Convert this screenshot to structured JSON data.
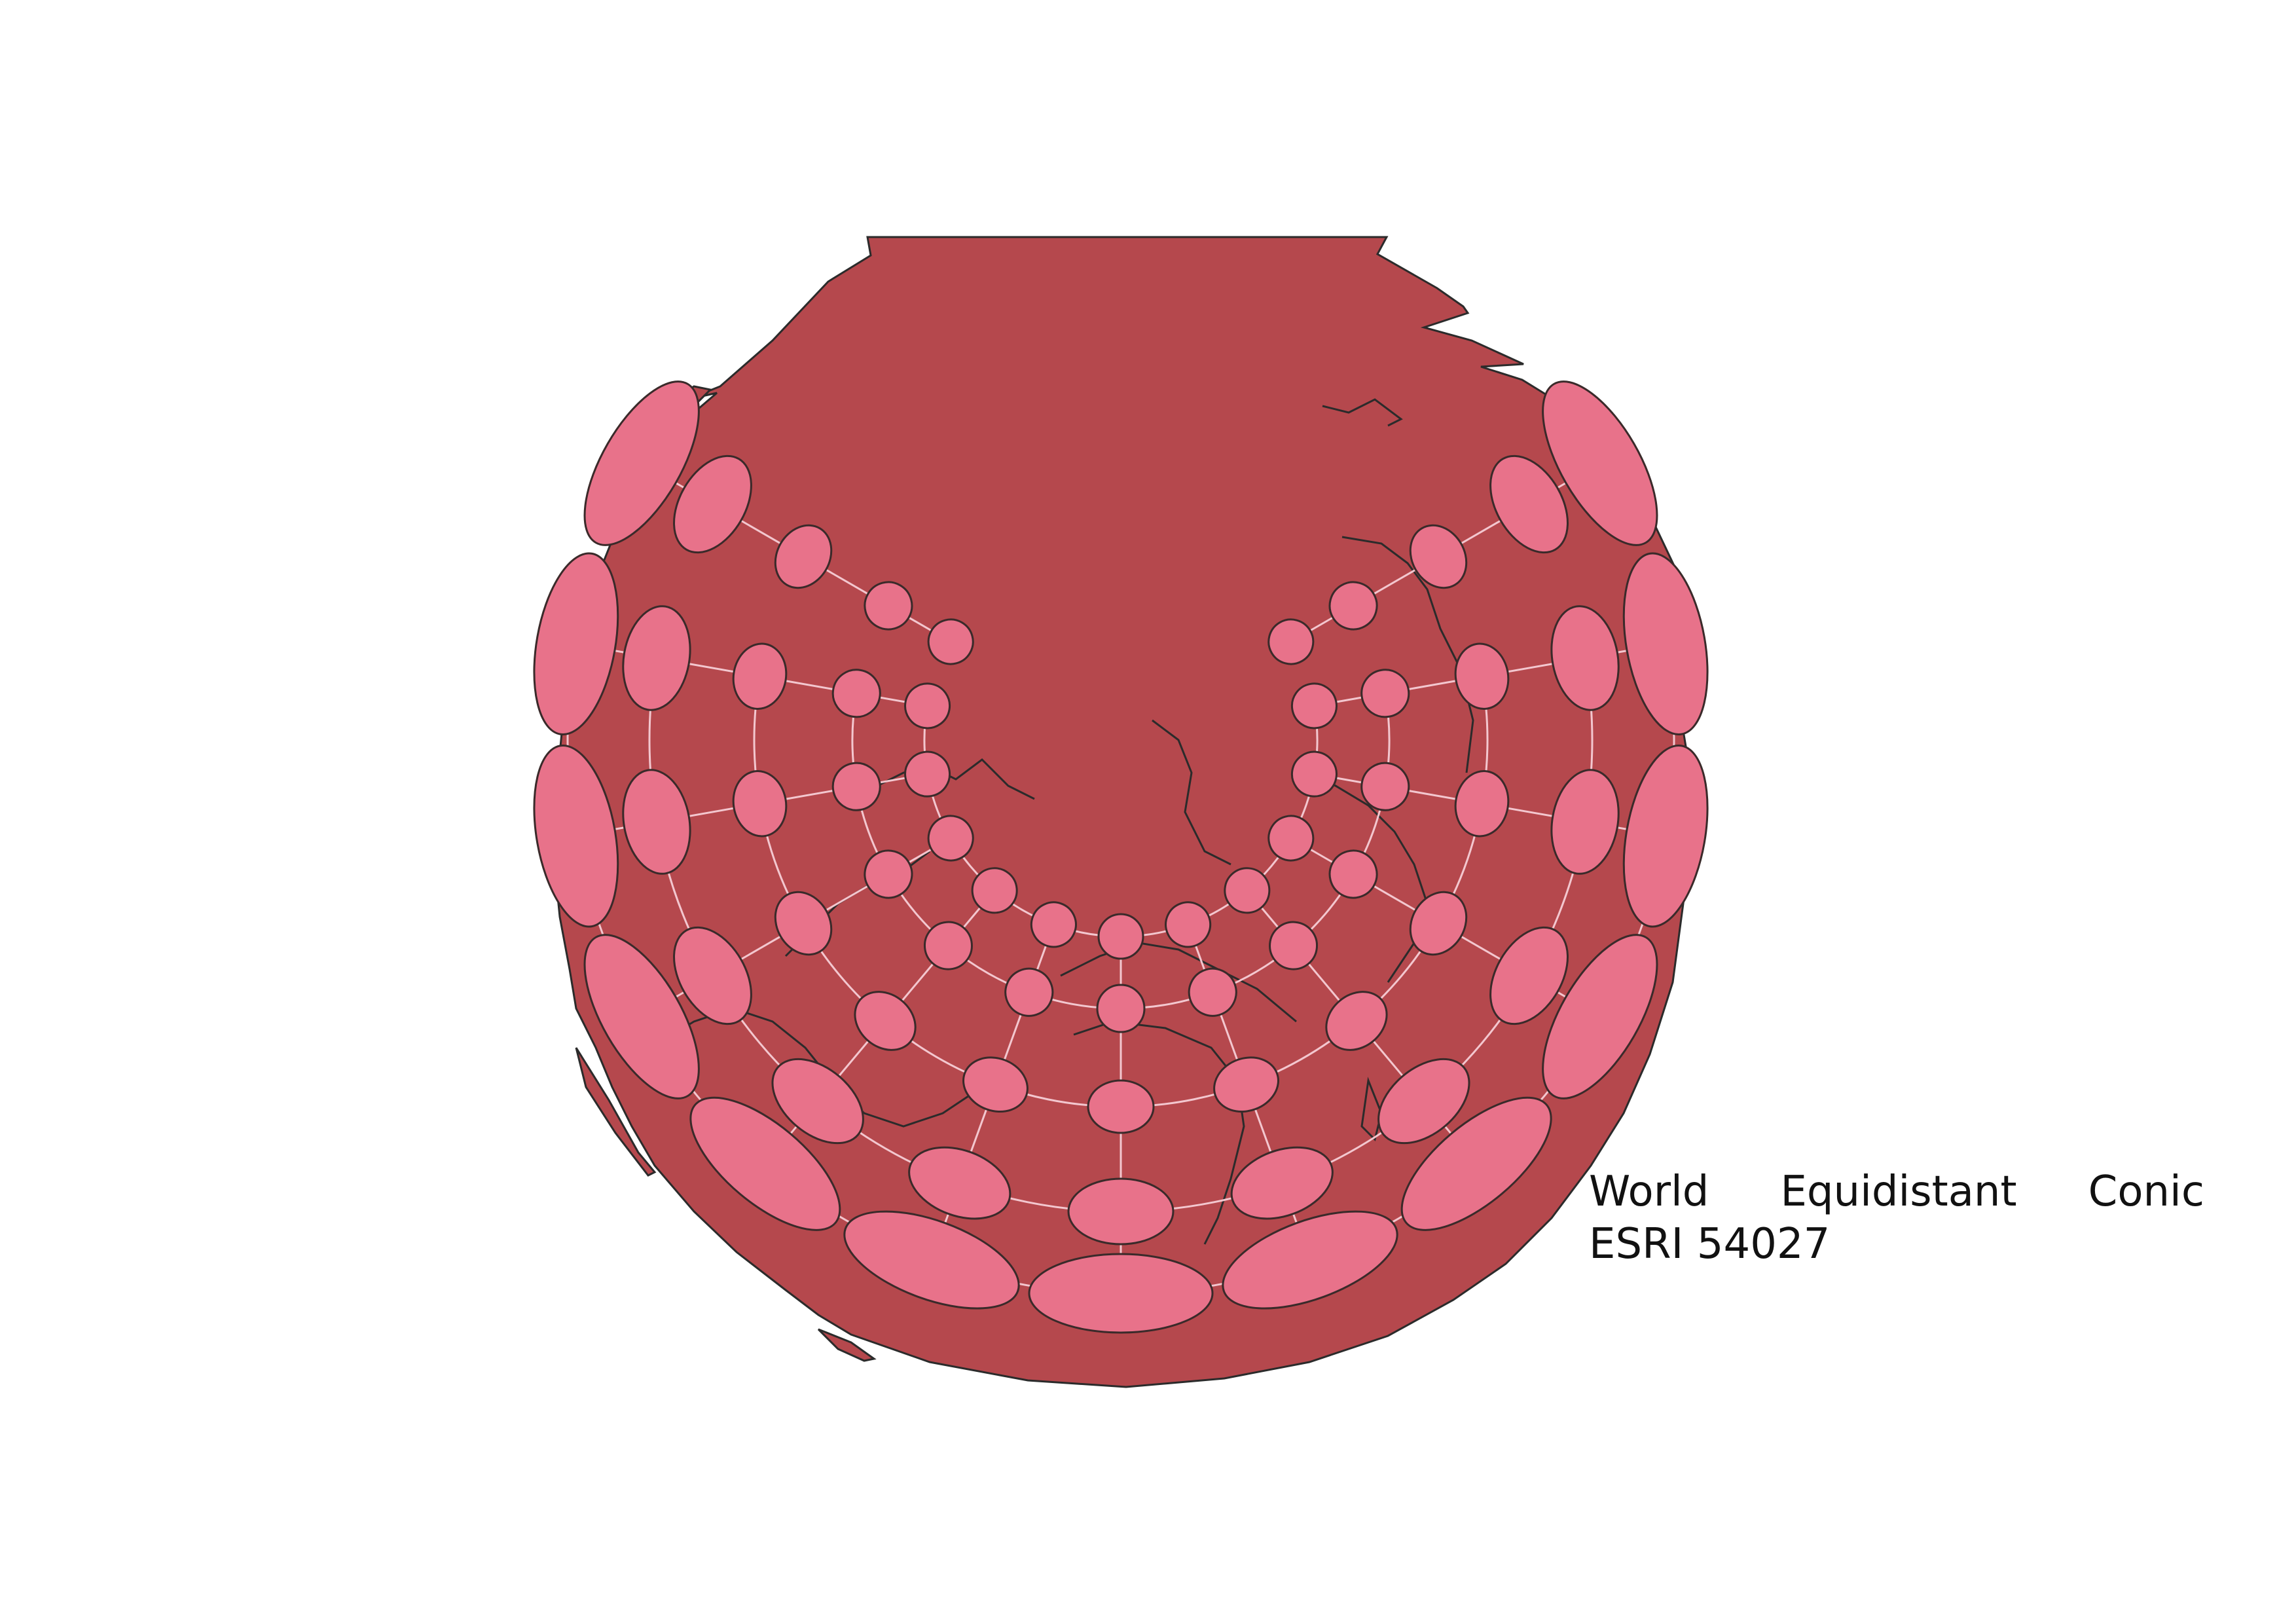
{
  "map": {
    "projection_name": "World Equidistant Conic",
    "projection_code": "ESRI 54027",
    "title_words": [
      "World",
      "Equidistant",
      "Conic"
    ],
    "features": [
      "land-outline",
      "graticule",
      "tissot-indicatrix"
    ],
    "colors": {
      "land_fill": "#b5484d",
      "outline": "#2b2b2b",
      "ellipse_fill": "#e8728a",
      "ellipse_stroke": "#3a2a2a",
      "graticule": "#f3c7cf",
      "label_text": "#111111"
    }
  }
}
